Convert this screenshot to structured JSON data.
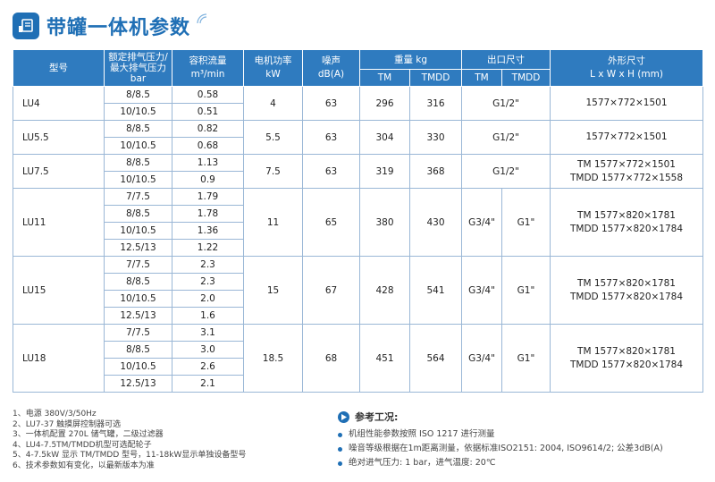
{
  "title": "带罐一体机参数",
  "colors": {
    "accent": "#1f6fb5",
    "header_bg": "#2f7bbf"
  },
  "headers": {
    "model": "型号",
    "pressure": [
      "额定排气压力/",
      "最大排气压力",
      "bar"
    ],
    "flow": [
      "容积流量",
      "m³/min"
    ],
    "power": [
      "电机功率",
      "kW"
    ],
    "noise": [
      "噪声",
      "dB(A)"
    ],
    "weight": "重量 kg",
    "outlet": "出口尺寸",
    "tm": "TM",
    "tmdd": "TMDD",
    "dims": [
      "外形尺寸",
      "L x W x H (mm)"
    ]
  },
  "rows": [
    {
      "model": "LU4",
      "pressures": [
        "8/8.5",
        "10/10.5"
      ],
      "flows": [
        "0.58",
        "0.51"
      ],
      "power": "4",
      "noise": "63",
      "weight_tm": "296",
      "weight_tmdd": "316",
      "outlet": "G1/2\"",
      "dims": [
        "1577×772×1501"
      ]
    },
    {
      "model": "LU5.5",
      "pressures": [
        "8/8.5",
        "10/10.5"
      ],
      "flows": [
        "0.82",
        "0.68"
      ],
      "power": "5.5",
      "noise": "63",
      "weight_tm": "304",
      "weight_tmdd": "330",
      "outlet": "G1/2\"",
      "dims": [
        "1577×772×1501"
      ]
    },
    {
      "model": "LU7.5",
      "pressures": [
        "8/8.5",
        "10/10.5"
      ],
      "flows": [
        "1.13",
        "0.9"
      ],
      "power": "7.5",
      "noise": "63",
      "weight_tm": "319",
      "weight_tmdd": "368",
      "outlet": "G1/2\"",
      "dims": [
        "TM 1577×772×1501",
        "TMDD 1577×772×1558"
      ]
    },
    {
      "model": "LU11",
      "pressures": [
        "7/7.5",
        "8/8.5",
        "10/10.5",
        "12.5/13"
      ],
      "flows": [
        "1.79",
        "1.78",
        "1.36",
        "1.22"
      ],
      "power": "11",
      "noise": "65",
      "weight_tm": "380",
      "weight_tmdd": "430",
      "outlet_tm": "G3/4\"",
      "outlet_tmdd": "G1\"",
      "dims": [
        "TM 1577×820×1781",
        "TMDD 1577×820×1784"
      ]
    },
    {
      "model": "LU15",
      "pressures": [
        "7/7.5",
        "8/8.5",
        "10/10.5",
        "12.5/13"
      ],
      "flows": [
        "2.3",
        "2.3",
        "2.0",
        "1.6"
      ],
      "power": "15",
      "noise": "67",
      "weight_tm": "428",
      "weight_tmdd": "541",
      "outlet_tm": "G3/4\"",
      "outlet_tmdd": "G1\"",
      "dims": [
        "TM 1577×820×1781",
        "TMDD 1577×820×1784"
      ]
    },
    {
      "model": "LU18",
      "pressures": [
        "7/7.5",
        "8/8.5",
        "10/10.5",
        "12.5/13"
      ],
      "flows": [
        "3.1",
        "3.0",
        "2.6",
        "2.1"
      ],
      "power": "18.5",
      "noise": "68",
      "weight_tm": "451",
      "weight_tmdd": "564",
      "outlet_tm": "G3/4\"",
      "outlet_tmdd": "G1\"",
      "dims": [
        "TM 1577×820×1781",
        "TMDD 1577×820×1784"
      ]
    }
  ],
  "notes": [
    "1、电源 380V/3/50Hz",
    "2、LU7-37 触摸屏控制器可选",
    "3、一体机配置 270L 储气罐，二级过滤器",
    "4、LU4-7.5TM/TMDD机型可选配轮子",
    "5、4-7.5kW 显示 TM/TMDD 型号，11-18kW显示单独设备型号",
    "6、技术参数如有变化，以最新版本为准"
  ],
  "reference": {
    "title": "参考工况:",
    "items": [
      "机组性能参数按照 ISO 1217 进行测量",
      "噪音等级根据在1m距离测量，依据标准ISO2151: 2004, ISO9614/2; 公差3dB(A)",
      "绝对进气压力: 1 bar，进气温度: 20℃"
    ]
  }
}
